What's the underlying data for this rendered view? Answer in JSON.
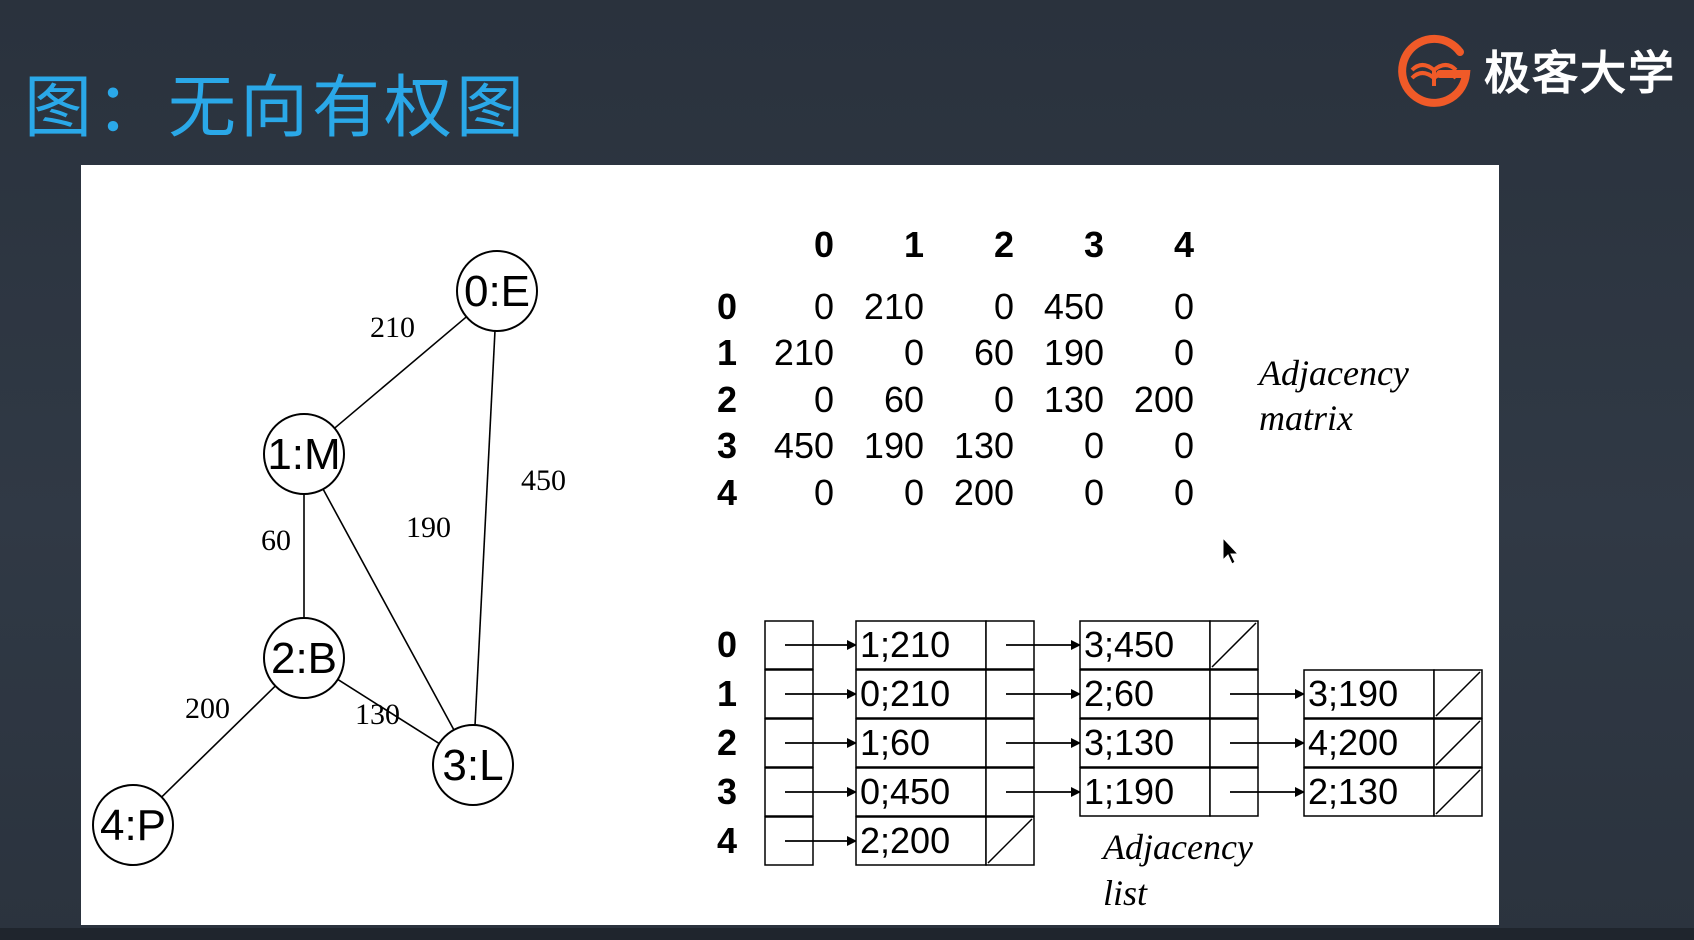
{
  "slide": {
    "title": "图：无向有权图"
  },
  "brand": {
    "name": "极客大学",
    "accent": "#f05a28"
  },
  "colors": {
    "title": "#2aa8e8",
    "background": "#2d3540",
    "panel": "#ffffff",
    "ink": "#000000"
  },
  "graph": {
    "nodes": [
      {
        "id": 0,
        "label": "0:E"
      },
      {
        "id": 1,
        "label": "1:M"
      },
      {
        "id": 2,
        "label": "2:B"
      },
      {
        "id": 3,
        "label": "3:L"
      },
      {
        "id": 4,
        "label": "4:P"
      }
    ],
    "edges": [
      {
        "from": 0,
        "to": 1,
        "weight": "210"
      },
      {
        "from": 0,
        "to": 3,
        "weight": "450"
      },
      {
        "from": 1,
        "to": 2,
        "weight": "60"
      },
      {
        "from": 1,
        "to": 3,
        "weight": "190"
      },
      {
        "from": 2,
        "to": 3,
        "weight": "130"
      },
      {
        "from": 2,
        "to": 4,
        "weight": "200"
      }
    ]
  },
  "matrix": {
    "col_headers": [
      "0",
      "1",
      "2",
      "3",
      "4"
    ],
    "row_headers": [
      "0",
      "1",
      "2",
      "3",
      "4"
    ],
    "rows": [
      [
        "0",
        "210",
        "0",
        "450",
        "0"
      ],
      [
        "210",
        "0",
        "60",
        "190",
        "0"
      ],
      [
        "0",
        "60",
        "0",
        "130",
        "200"
      ],
      [
        "450",
        "190",
        "130",
        "0",
        "0"
      ],
      [
        "0",
        "0",
        "200",
        "0",
        "0"
      ]
    ],
    "caption": [
      "Adjacency",
      "matrix"
    ]
  },
  "adjacency_list": {
    "row_labels": [
      "0",
      "1",
      "2",
      "3",
      "4"
    ],
    "rows": [
      [
        "1;210",
        "3;450"
      ],
      [
        "0;210",
        "2;60",
        "3;190"
      ],
      [
        "1;60",
        "3;130",
        "4;200"
      ],
      [
        "0;450",
        "1;190",
        "2;130"
      ],
      [
        "2;200"
      ]
    ],
    "caption": [
      "Adjacency",
      "list"
    ]
  }
}
